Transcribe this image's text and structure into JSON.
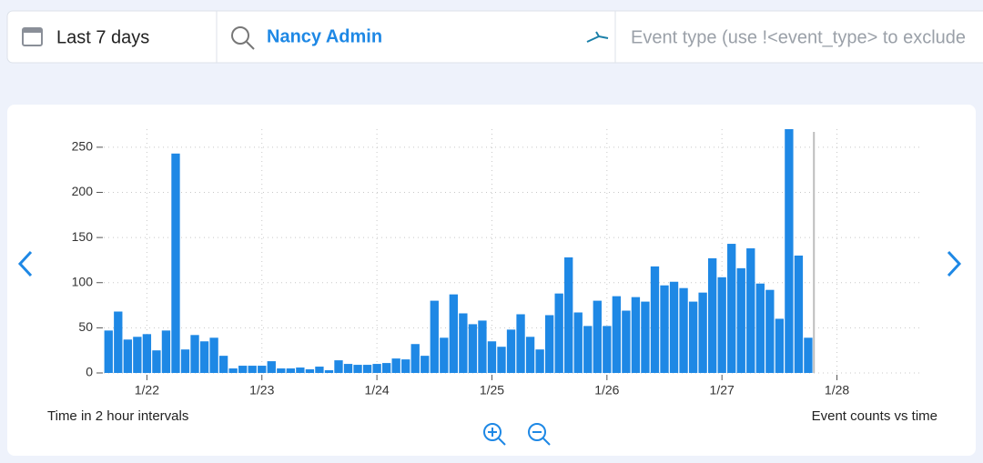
{
  "toolbar": {
    "date_range": "Last 7 days",
    "user": "Nancy Admin",
    "event_filter_placeholder": "Event type (use !<event_type> to exclude"
  },
  "chart_data": {
    "type": "bar",
    "x_label": "Time in 2 hour intervals",
    "caption": "Event counts vs time",
    "categories": [
      null,
      null,
      null,
      null,
      null,
      null,
      null,
      null,
      null,
      null,
      null,
      null,
      null,
      null,
      null,
      null,
      null,
      null,
      null,
      null,
      null,
      null,
      null,
      null,
      null,
      null,
      null,
      null,
      null,
      null,
      null,
      null,
      null,
      null,
      null,
      null,
      null,
      null,
      null,
      null,
      null,
      null,
      null,
      null,
      null,
      null,
      null,
      null,
      null,
      null,
      null,
      null,
      null,
      null,
      null,
      null,
      null,
      null,
      null,
      null,
      null,
      null,
      null,
      null,
      null,
      null,
      null,
      null,
      null,
      null,
      null,
      null,
      null,
      null
    ],
    "values": [
      47,
      68,
      37,
      40,
      43,
      25,
      47,
      243,
      26,
      42,
      35,
      39,
      19,
      5,
      8,
      8,
      8,
      13,
      5,
      5,
      6,
      4,
      7,
      3,
      14,
      10,
      9,
      9,
      10,
      11,
      16,
      15,
      32,
      19,
      80,
      39,
      87,
      66,
      54,
      58,
      35,
      29,
      48,
      65,
      40,
      26,
      64,
      88,
      128,
      67,
      52,
      80,
      52,
      85,
      69,
      84,
      79,
      118,
      97,
      101,
      94,
      79,
      89,
      127,
      106,
      143,
      116,
      138,
      99,
      92,
      60,
      270,
      130,
      39
    ],
    "color": "#1e88e5",
    "ylim": [
      0,
      270
    ],
    "yticks": [
      0,
      50,
      100,
      150,
      200,
      250
    ],
    "xticks": [
      {
        "value": 4,
        "label": "1/22"
      },
      {
        "value": 16,
        "label": "1/23"
      },
      {
        "value": 28,
        "label": "1/24"
      },
      {
        "value": 40,
        "label": "1/25"
      },
      {
        "value": 52,
        "label": "1/26"
      },
      {
        "value": 64,
        "label": "1/27"
      },
      {
        "value": 76,
        "label": "1/28"
      }
    ],
    "grid": true
  }
}
